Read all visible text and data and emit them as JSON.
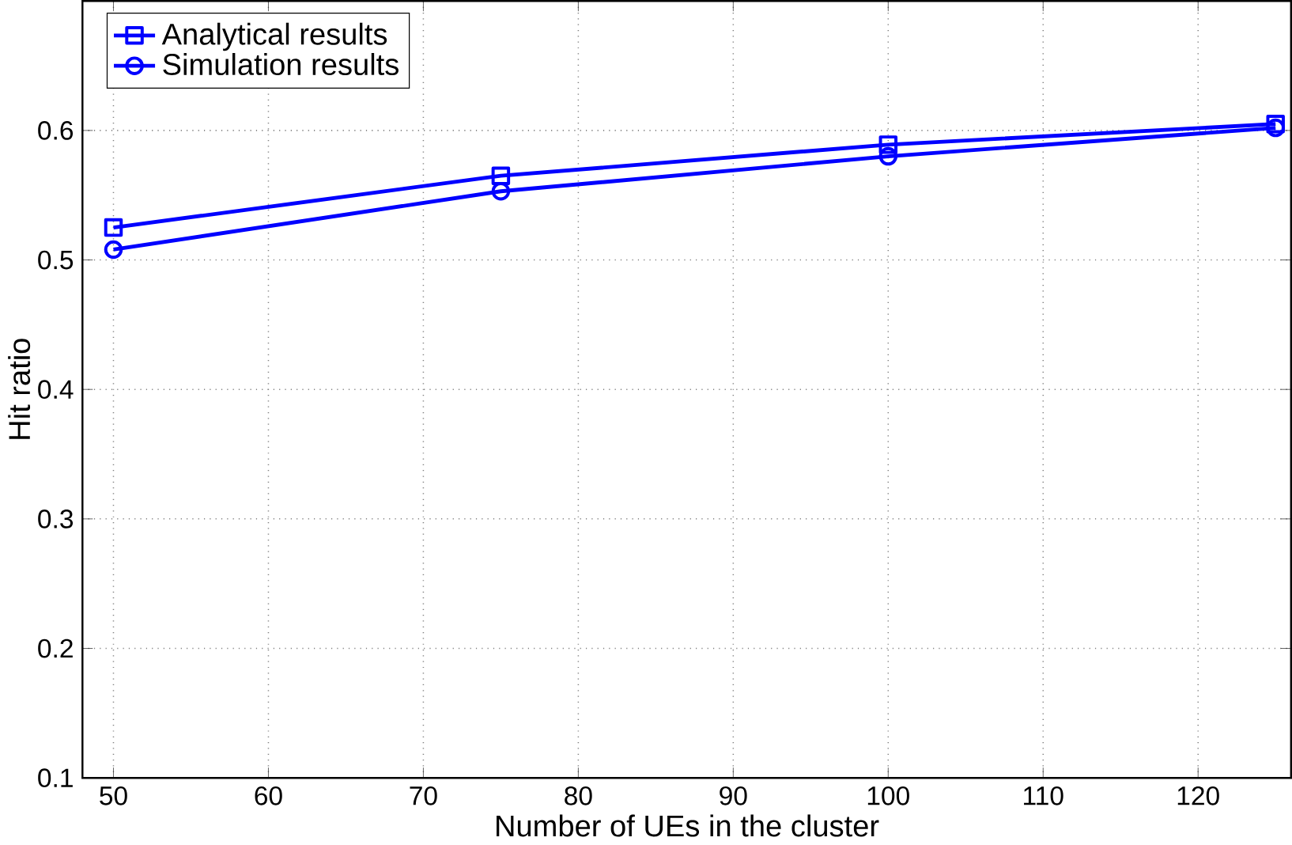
{
  "chart_data": {
    "type": "line",
    "xlabel": "Number of UEs in the cluster",
    "ylabel": "Hit ratio",
    "x": [
      50,
      75,
      100,
      125
    ],
    "series": [
      {
        "name": "Analytical results",
        "color": "#0000ff",
        "marker": "square",
        "values": [
          0.525,
          0.565,
          0.589,
          0.605
        ]
      },
      {
        "name": "Simulation results",
        "color": "#0000ff",
        "marker": "circle",
        "values": [
          0.508,
          0.553,
          0.58,
          0.602
        ]
      }
    ],
    "xlim": [
      48,
      126
    ],
    "ylim": [
      0.1,
      0.7
    ],
    "xticks": [
      50,
      60,
      70,
      80,
      90,
      100,
      110,
      120
    ],
    "yticks": [
      0.1,
      0.2,
      0.3,
      0.4,
      0.5,
      0.6
    ],
    "grid": true,
    "legend": "top left",
    "line_style": "solid"
  }
}
